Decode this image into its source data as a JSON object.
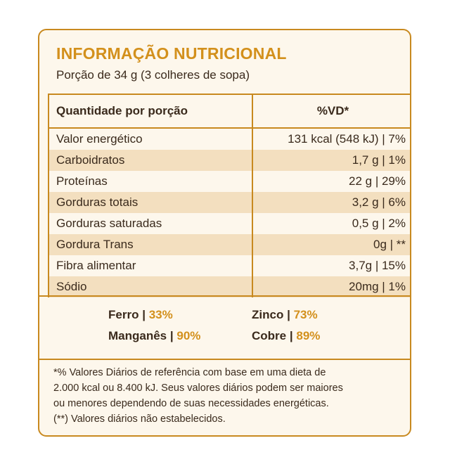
{
  "header": {
    "title": "INFORMAÇÃO NUTRICIONAL",
    "subtitle": "Porção de 34 g (3 colheres de sopa)"
  },
  "table": {
    "columns": [
      "Quantidade por porção",
      "%VD*"
    ],
    "rows": [
      [
        "Valor energético",
        "131 kcal (548 kJ) | 7%"
      ],
      [
        "Carboidratos",
        "1,7 g | 1%"
      ],
      [
        "Proteínas",
        "22 g | 29%"
      ],
      [
        "Gorduras totais",
        "3,2 g | 6%"
      ],
      [
        "Gorduras saturadas",
        "0,5 g | 2%"
      ],
      [
        "Gordura Trans",
        "0g | **"
      ],
      [
        "Fibra alimentar",
        "3,7g | 15%"
      ],
      [
        "Sódio",
        "20mg | 1%"
      ]
    ]
  },
  "minerals": {
    "separator": "|",
    "items": [
      {
        "name": "Ferro",
        "value": "33%"
      },
      {
        "name": "Zinco",
        "value": "73%"
      },
      {
        "name": "Manganês",
        "value": "90%"
      },
      {
        "name": "Cobre",
        "value": "89%"
      }
    ]
  },
  "footnote": [
    "*% Valores Diários de referência com base em uma dieta de",
    "2.000 kcal ou 8.400 kJ. Seus valores diários podem ser maiores",
    "ou menores dependendo de suas necessidades energéticas.",
    "(**) Valores diários não estabelecidos."
  ]
}
